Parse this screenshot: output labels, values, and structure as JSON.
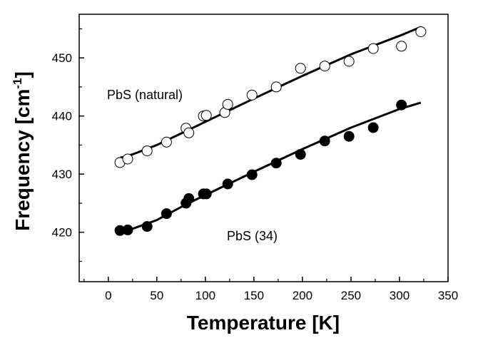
{
  "chart_data": {
    "type": "scatter",
    "title": "",
    "xlabel": "Temperature [K]",
    "ylabel_main": "Frequency [cm",
    "ylabel_sup": "-1",
    "ylabel_close": "]",
    "xlim": [
      -30,
      350
    ],
    "ylim": [
      411.5,
      457.5
    ],
    "xticks": [
      0,
      50,
      100,
      150,
      200,
      250,
      300,
      350
    ],
    "yticks": [
      420,
      430,
      440,
      450
    ],
    "xminor_step": 25,
    "yminor_step": 5,
    "annotations": [
      {
        "text": "PbS (natural)",
        "x": 10,
        "y": 444
      },
      {
        "text": "PbS (34)",
        "x": 125,
        "y": 420
      }
    ],
    "series": [
      {
        "name": "PbS (natural)",
        "marker": "open-circle",
        "points": [
          [
            12,
            432.0
          ],
          [
            20,
            432.6
          ],
          [
            40,
            434.0
          ],
          [
            60,
            435.5
          ],
          [
            80,
            437.9
          ],
          [
            83,
            437.1
          ],
          [
            98,
            440.0
          ],
          [
            101,
            440.1
          ],
          [
            120,
            440.6
          ],
          [
            123,
            442.0
          ],
          [
            148,
            443.6
          ],
          [
            173,
            445.0
          ],
          [
            198,
            448.2
          ],
          [
            223,
            448.6
          ],
          [
            248,
            449.4
          ],
          [
            273,
            451.6
          ],
          [
            302,
            452.0
          ],
          [
            322,
            454.5
          ]
        ],
        "fit": [
          [
            12,
            432.8
          ],
          [
            25,
            433.4
          ],
          [
            50,
            435.0
          ],
          [
            80,
            437.4
          ],
          [
            100,
            439.0
          ],
          [
            150,
            443.0
          ],
          [
            200,
            446.9
          ],
          [
            250,
            450.6
          ],
          [
            300,
            453.8
          ],
          [
            322,
            455.3
          ]
        ]
      },
      {
        "name": "PbS (34)",
        "marker": "filled-circle",
        "points": [
          [
            12,
            420.3
          ],
          [
            20,
            420.4
          ],
          [
            40,
            421.0
          ],
          [
            60,
            423.2
          ],
          [
            80,
            425.0
          ],
          [
            83,
            425.8
          ],
          [
            98,
            426.6
          ],
          [
            101,
            426.6
          ],
          [
            123,
            428.3
          ],
          [
            148,
            429.9
          ],
          [
            173,
            431.9
          ],
          [
            198,
            433.4
          ],
          [
            223,
            435.7
          ],
          [
            248,
            436.5
          ],
          [
            273,
            438.0
          ],
          [
            302,
            441.9
          ]
        ],
        "fit": [
          [
            12,
            420.0
          ],
          [
            25,
            420.6
          ],
          [
            50,
            422.1
          ],
          [
            80,
            424.8
          ],
          [
            100,
            426.4
          ],
          [
            150,
            430.4
          ],
          [
            200,
            434.3
          ],
          [
            250,
            438.0
          ],
          [
            300,
            441.2
          ],
          [
            322,
            442.3
          ]
        ]
      }
    ]
  }
}
